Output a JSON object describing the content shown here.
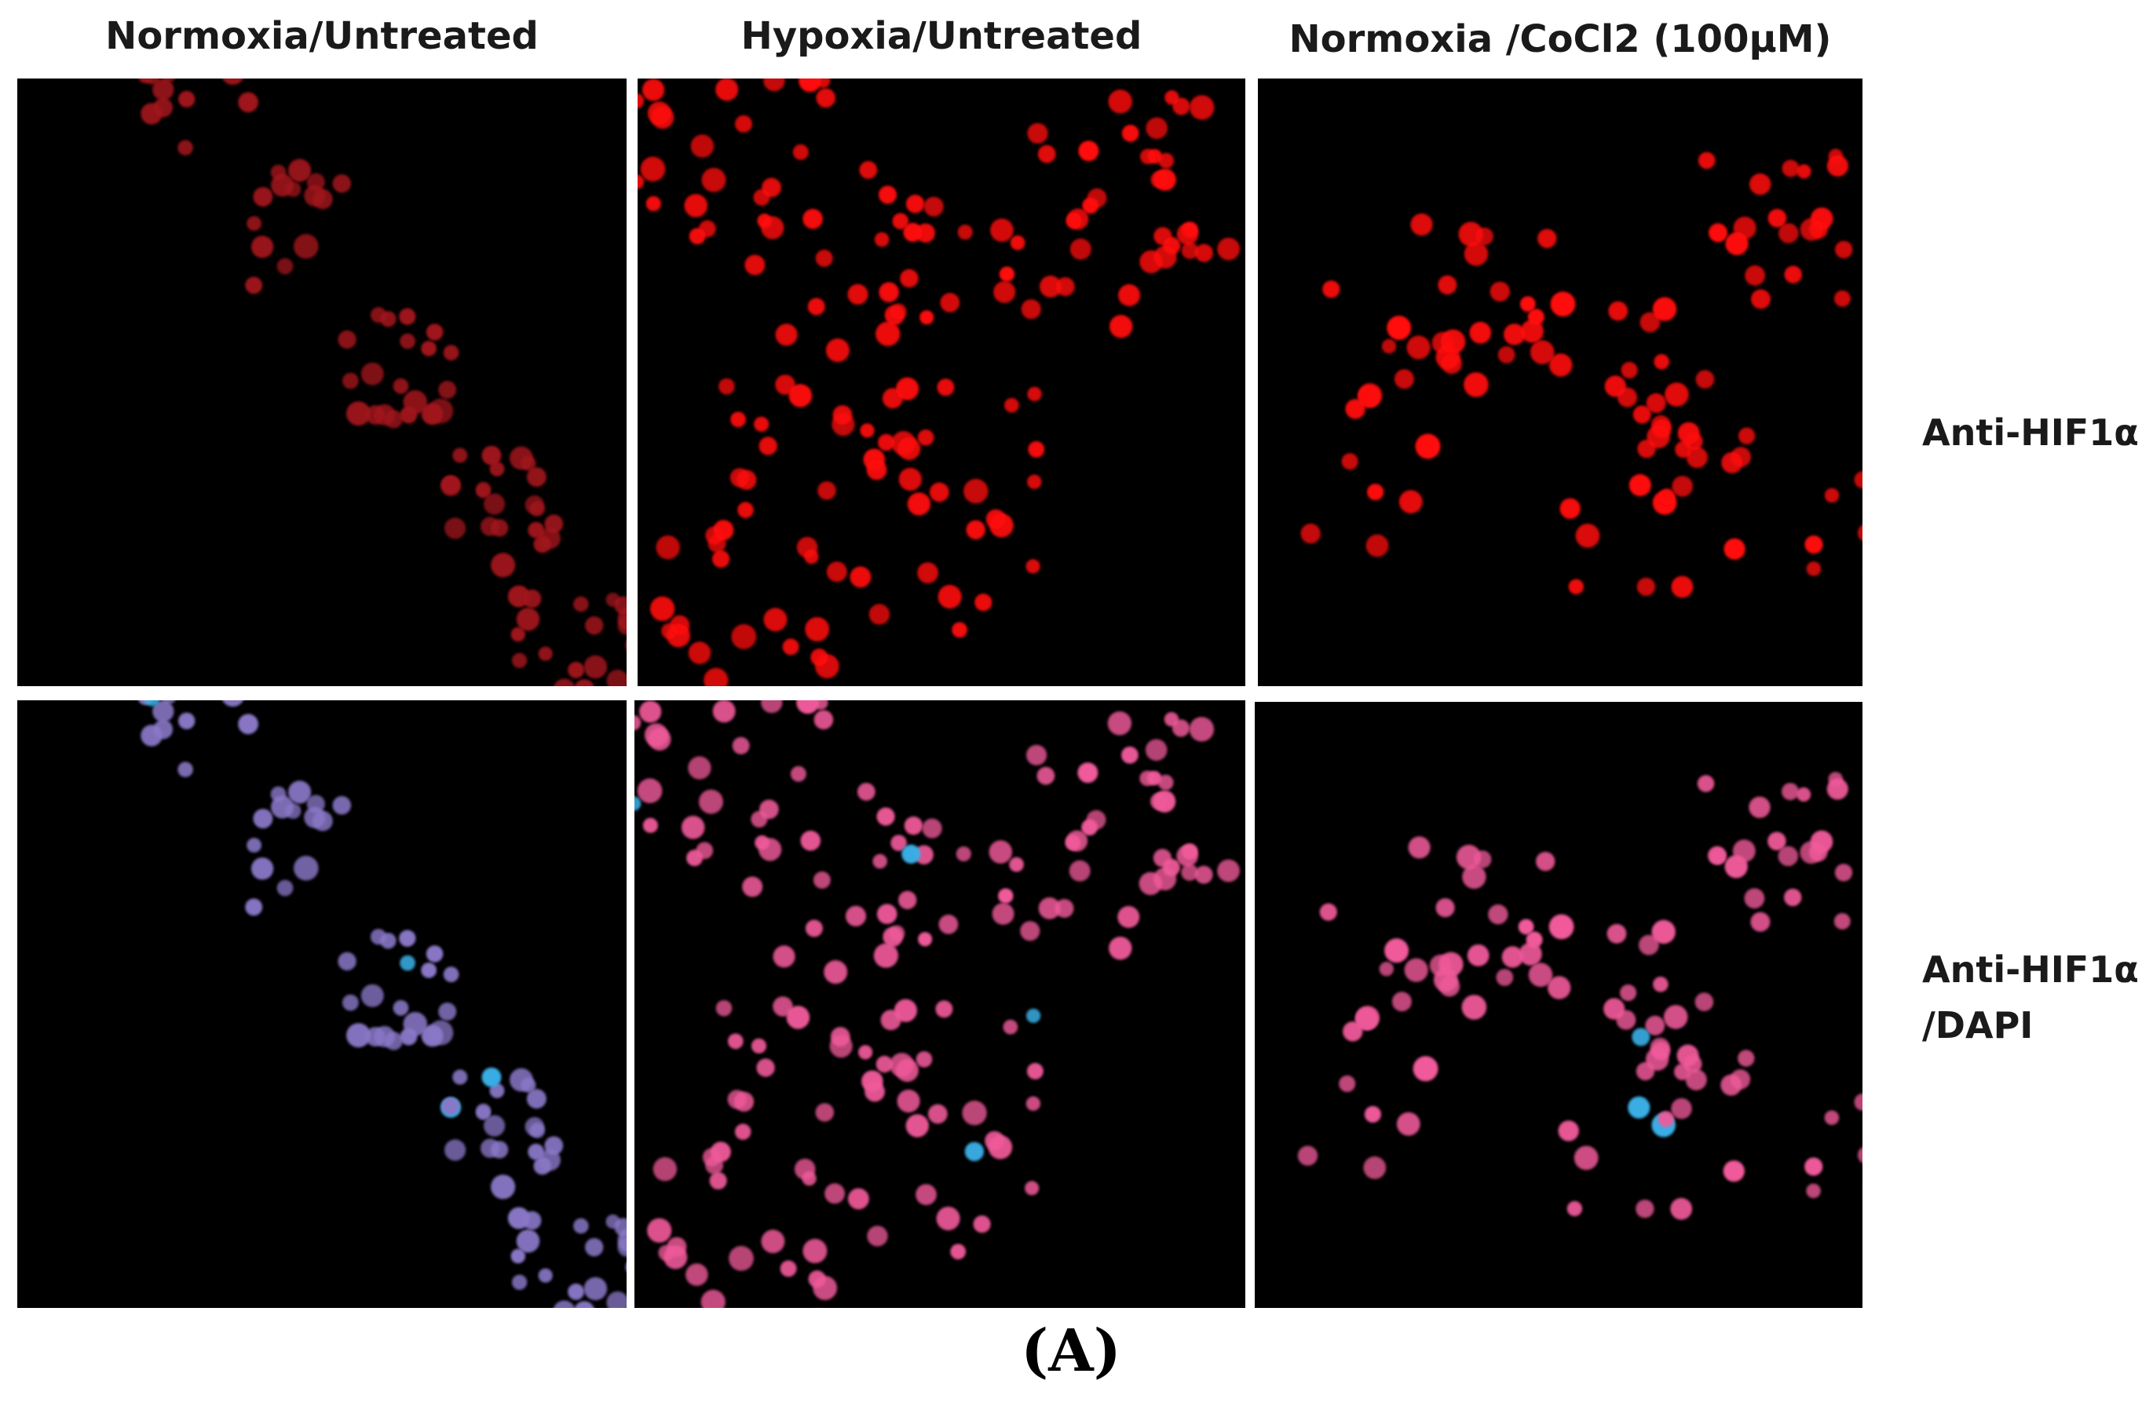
{
  "column_titles": [
    "Normoxia/Untreated",
    "Hypoxia/Untreated",
    "Normoxia /CoCl2 (100μM)"
  ],
  "row_labels": [
    {
      "line1": "Anti-HIF1α",
      "line2": ""
    },
    {
      "line1": "Anti-HIF1α",
      "line2": "/DAPI"
    }
  ],
  "figure_label": "(A)",
  "panels": [
    {
      "row": "Anti-HIF1α",
      "column": "Normoxia/Untreated",
      "stain": "HIF1α",
      "signal": "dim red nuclei"
    },
    {
      "row": "Anti-HIF1α",
      "column": "Hypoxia/Untreated",
      "stain": "HIF1α",
      "signal": "bright red nuclei"
    },
    {
      "row": "Anti-HIF1α",
      "column": "Normoxia /CoCl2 (100μM)",
      "stain": "HIF1α",
      "signal": "bright red nuclei"
    },
    {
      "row": "Anti-HIF1α/DAPI",
      "column": "Normoxia/Untreated",
      "stain": "HIF1α + DAPI",
      "signal": "violet-blue nuclei"
    },
    {
      "row": "Anti-HIF1α/DAPI",
      "column": "Hypoxia/Untreated",
      "stain": "HIF1α + DAPI",
      "signal": "pink nuclei"
    },
    {
      "row": "Anti-HIF1α/DAPI",
      "column": "Normoxia /CoCl2 (100μM)",
      "stain": "HIF1α + DAPI",
      "signal": "pink nuclei"
    }
  ],
  "colors": {
    "background": "#000000",
    "hif_dim": "#a0141e",
    "hif_bright": "#ff1010",
    "merge_normoxia": "#8a78c8",
    "merge_pink": "#f05a9a",
    "dapi": "#3ab0e8"
  }
}
